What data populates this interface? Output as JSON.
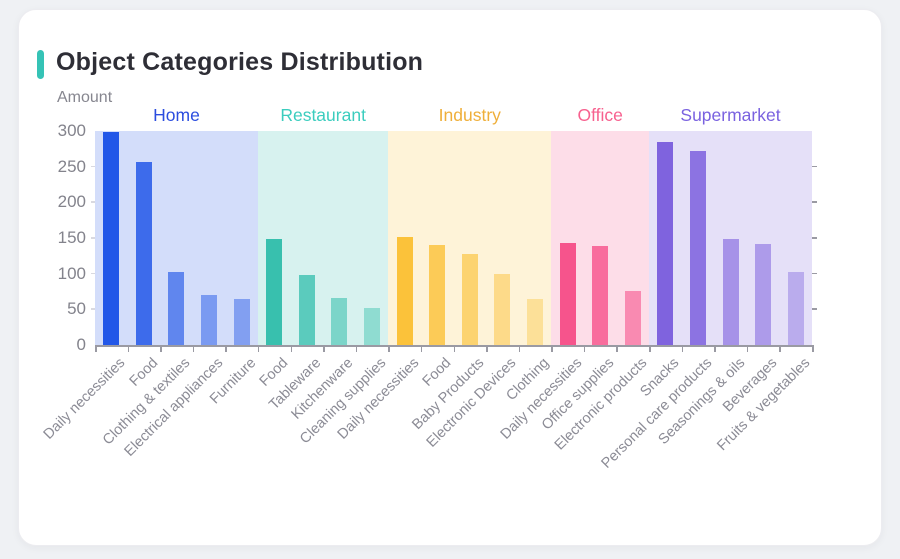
{
  "card": {
    "title": "Object Categories Distribution"
  },
  "chart_data": {
    "type": "bar",
    "title": "Object Categories Distribution",
    "xlabel": "",
    "ylabel": "Amount",
    "ylim": [
      0,
      300
    ],
    "y_ticks": [
      0,
      50,
      100,
      150,
      200,
      250,
      300
    ],
    "grid": false,
    "legend_position": "none",
    "band_opacity": 0.2,
    "colors": {
      "accent": "#35c3b6",
      "title_text": "#2e2e36",
      "axis_text": "#86868f",
      "x_label_text": "#8b8b95",
      "axis_line": "#9a9aa3"
    },
    "groups": [
      {
        "name": "Home",
        "color": "#2257e8",
        "label_color": "#2b4ddf",
        "categories": [
          "Daily necessities",
          "Food",
          "Clothing & textiles",
          "Electrical appliances",
          "Furniture"
        ],
        "values": [
          298,
          257,
          103,
          70,
          65
        ],
        "bar_opacity": [
          1,
          0.85,
          0.65,
          0.5,
          0.46
        ]
      },
      {
        "name": "Restaurant",
        "color": "#38c0ae",
        "label_color": "#3bcdbe",
        "categories": [
          "Food",
          "Tableware",
          "Kitchenware",
          "Cleaning supplies"
        ],
        "values": [
          149,
          98,
          66,
          52
        ],
        "bar_opacity": [
          1,
          0.78,
          0.58,
          0.45
        ]
      },
      {
        "name": "Industry",
        "color": "#fbc23a",
        "label_color": "#efaf3a",
        "categories": [
          "Daily necessities",
          "Food",
          "Baby Products",
          "Electronic Devices",
          "Clothing"
        ],
        "values": [
          151,
          140,
          127,
          100,
          64
        ],
        "bar_opacity": [
          1,
          0.82,
          0.66,
          0.5,
          0.4
        ]
      },
      {
        "name": "Office",
        "color": "#f6548c",
        "label_color": "#f7618f",
        "categories": [
          "Daily necessities",
          "Office supplies",
          "Electronic products"
        ],
        "values": [
          143,
          139,
          76
        ],
        "bar_opacity": [
          1,
          0.82,
          0.6
        ]
      },
      {
        "name": "Supermarket",
        "color": "#7f63de",
        "label_color": "#7a62e0",
        "categories": [
          "Snacks",
          "Personal care products",
          "Seasonings & oils",
          "Beverages",
          "Fruits & vegetables"
        ],
        "values": [
          285,
          272,
          149,
          141,
          102
        ],
        "bar_opacity": [
          1,
          0.88,
          0.62,
          0.55,
          0.42
        ]
      }
    ]
  }
}
